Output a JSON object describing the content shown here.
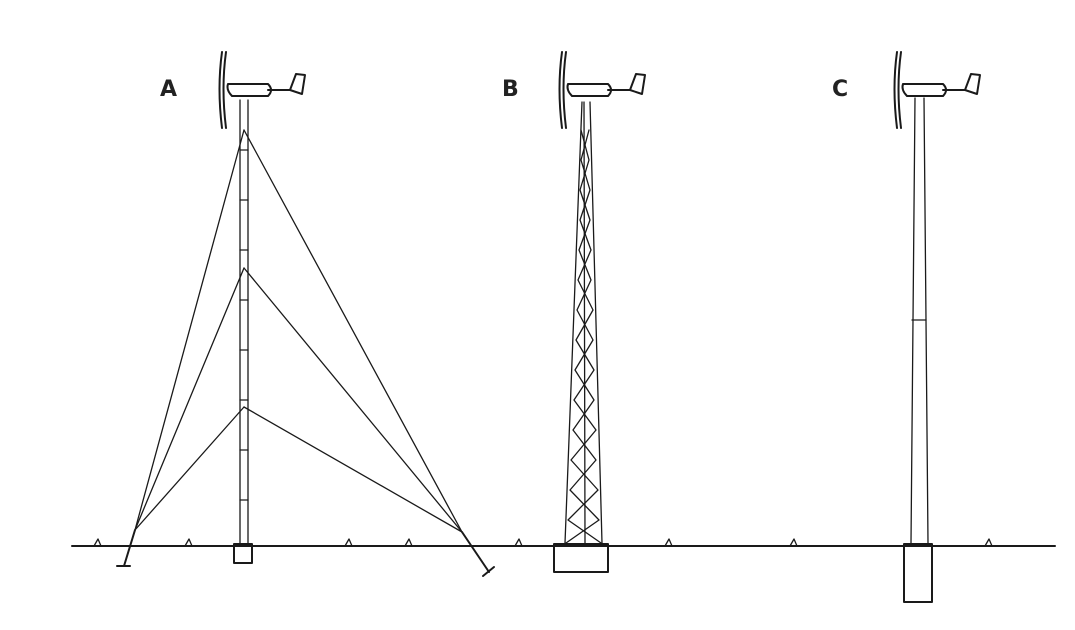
{
  "towers": [
    {
      "id": "A",
      "label": "A"
    },
    {
      "id": "B",
      "label": "B"
    },
    {
      "id": "C",
      "label": "C"
    }
  ],
  "colors": {
    "ink": "#1a1a1a",
    "background": "#ffffff"
  }
}
